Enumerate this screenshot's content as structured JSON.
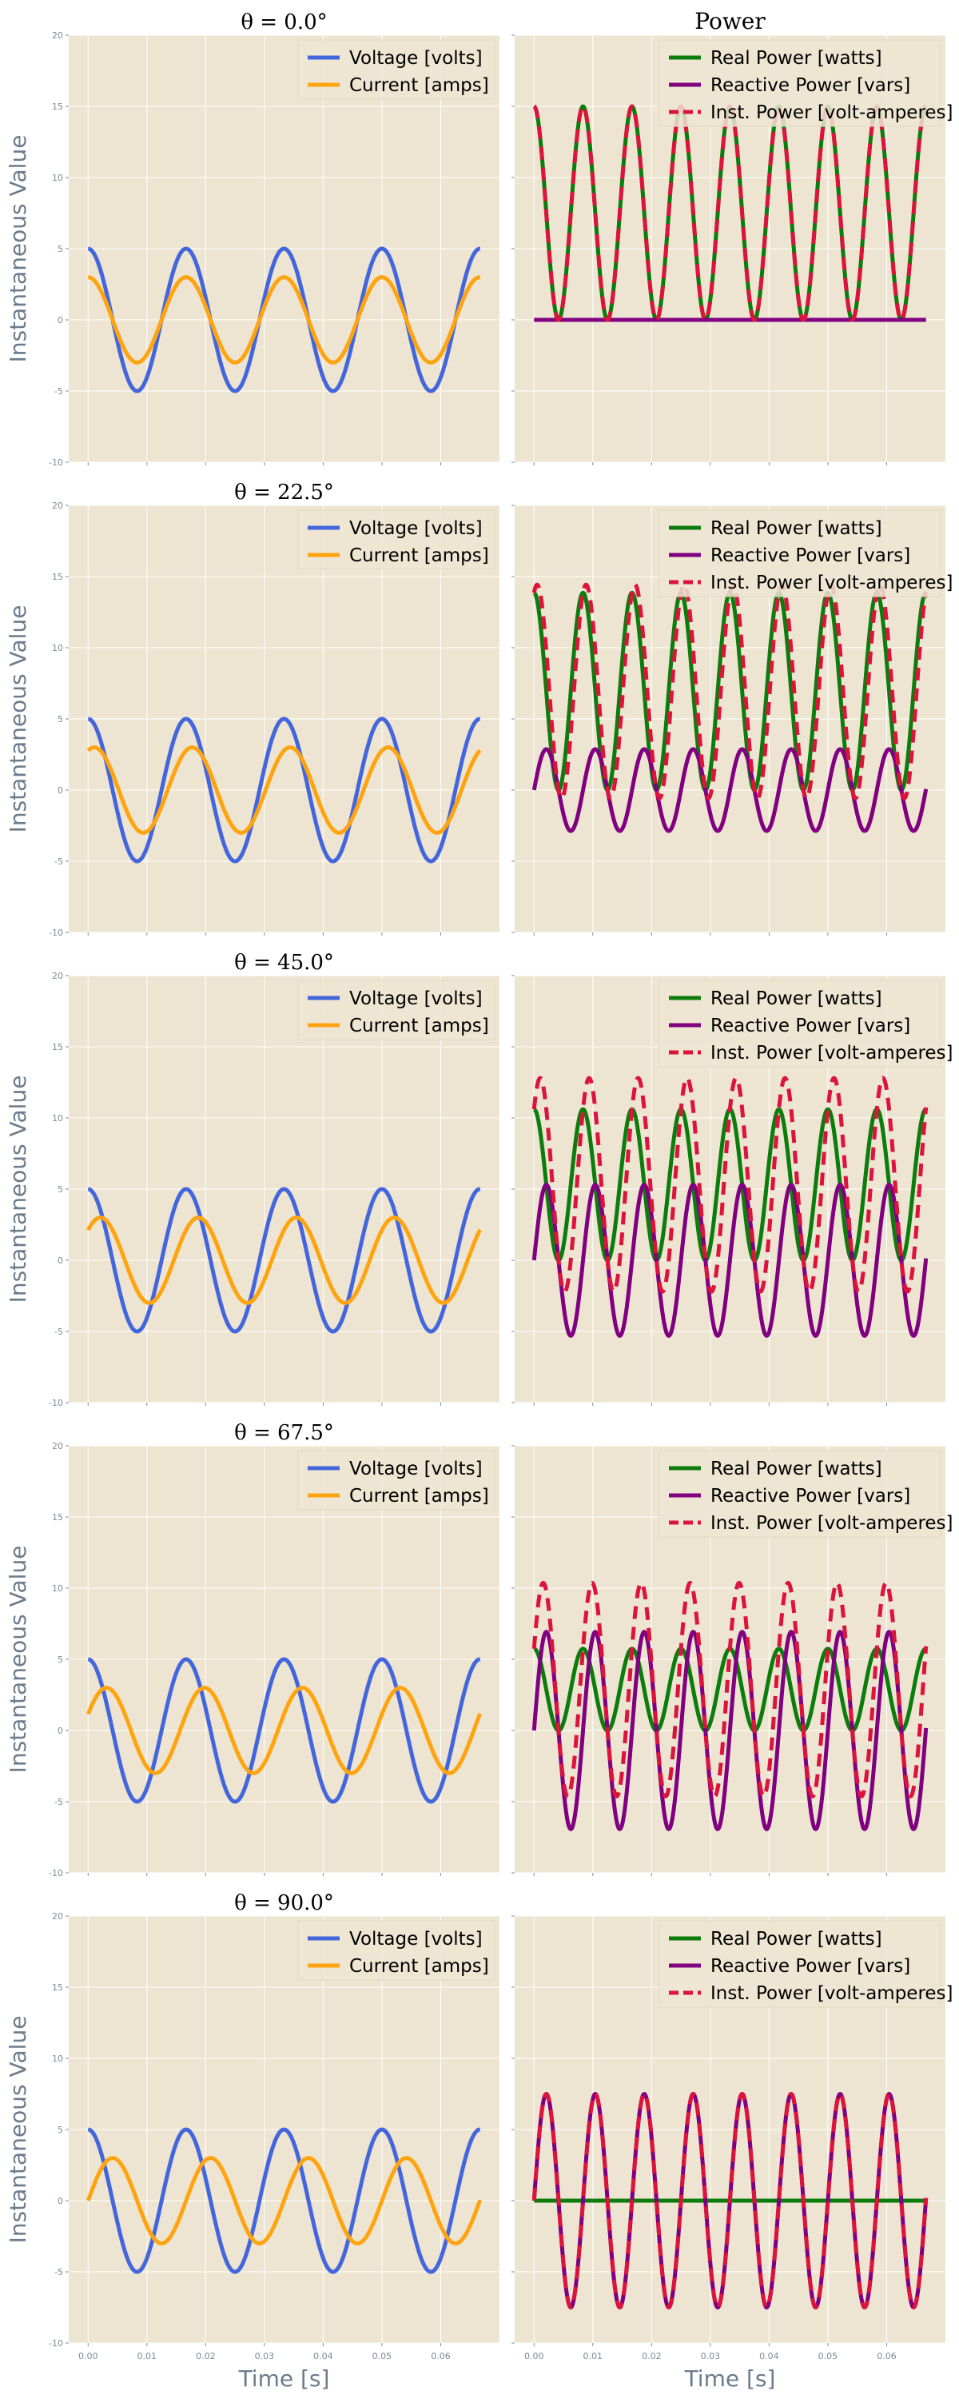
{
  "figure": {
    "style": {
      "axes_bg": "#ede5d2",
      "grid": "#ffffff",
      "tick_color": "#7a8a96",
      "label_color": "#6b7c8c"
    },
    "colors": {
      "voltage": "#4466dd",
      "current": "#ffa411",
      "real": "#0c7c0c",
      "reactive": "#800080",
      "inst": "#dc143c"
    },
    "ylabel": "Instantaneous Value",
    "xlabel": "Time [s]",
    "right_title": "Power",
    "left_titles": [
      "θ = 0.0°",
      "θ = 22.5°",
      "θ = 45.0°",
      "θ = 67.5°",
      "θ = 90.0°"
    ],
    "legend_left": [
      "Voltage [volts]",
      "Current [amps]"
    ],
    "legend_right": [
      "Real Power [watts]",
      "Reactive Power [vars]",
      "Inst. Power [volt-amperes]"
    ],
    "yticks": [
      "-10",
      "-5",
      "0",
      "5",
      "10",
      "15",
      "20"
    ],
    "xticks": [
      "0.00",
      "0.01",
      "0.02",
      "0.03",
      "0.04",
      "0.05",
      "0.06"
    ]
  },
  "chart_data": [
    {
      "type": "line",
      "title": "θ = 0.0°",
      "xlabel": "",
      "ylabel": "Instantaneous Value",
      "xlim": [
        -0.0033,
        0.07
      ],
      "ylim": [
        -10,
        20
      ],
      "grid": true,
      "legend": "top-right",
      "series": [
        {
          "name": "Voltage [volts]",
          "x": [
            0.0,
            0.004,
            0.008,
            0.0125,
            0.0167,
            0.0208,
            0.025,
            0.0333,
            0.0417,
            0.05,
            0.0583,
            0.0667
          ],
          "y": [
            5.0,
            0.0,
            -5.0,
            0.0,
            5.0,
            0.0,
            -5.0,
            5.0,
            -5.0,
            5.0,
            -5.0,
            5.0
          ]
        },
        {
          "name": "Current [amps]",
          "x": [
            0.0,
            0.004,
            0.008,
            0.0125,
            0.0167,
            0.0208,
            0.025,
            0.0333,
            0.0417,
            0.05,
            0.0583,
            0.0667
          ],
          "y": [
            3.0,
            0.0,
            -3.0,
            0.0,
            3.0,
            0.0,
            -3.0,
            3.0,
            -3.0,
            3.0,
            -3.0,
            3.0
          ]
        }
      ]
    },
    {
      "type": "line",
      "title": "Power",
      "xlabel": "",
      "ylabel": "",
      "xlim": [
        -0.0033,
        0.07
      ],
      "ylim": [
        -10,
        20
      ],
      "grid": true,
      "legend": "top-right",
      "series": [
        {
          "name": "Real Power [watts]",
          "x": [
            0.0,
            0.0042,
            0.0083,
            0.0125,
            0.0167,
            0.0208,
            0.025,
            0.0333,
            0.0417,
            0.05,
            0.0583,
            0.0667
          ],
          "y": [
            15.0,
            0.0,
            15.0,
            0.0,
            15.0,
            0.0,
            15.0,
            15.0,
            15.0,
            15.0,
            15.0,
            15.0
          ]
        },
        {
          "name": "Reactive Power [vars]",
          "x": [
            0.0,
            0.0667
          ],
          "y": [
            0.0,
            0.0
          ]
        },
        {
          "name": "Inst. Power [volt-amperes]",
          "x": [
            0.0,
            0.0042,
            0.0083,
            0.0125,
            0.0167,
            0.0208,
            0.025,
            0.0333,
            0.0417,
            0.05,
            0.0583,
            0.0667
          ],
          "y": [
            15.0,
            0.0,
            15.0,
            0.0,
            15.0,
            0.0,
            15.0,
            15.0,
            15.0,
            15.0,
            15.0,
            15.0
          ]
        }
      ]
    },
    {
      "type": "line",
      "title": "θ = 22.5°",
      "xlabel": "",
      "ylabel": "Instantaneous Value",
      "xlim": [
        -0.0033,
        0.07
      ],
      "ylim": [
        -10,
        20
      ],
      "grid": true,
      "legend": "top-right",
      "series": [
        {
          "name": "Voltage [volts]",
          "x": [
            0.0,
            0.004,
            0.008,
            0.0125,
            0.0167,
            0.025,
            0.0333,
            0.0417,
            0.05,
            0.0583,
            0.0667
          ],
          "y": [
            5.0,
            0.0,
            -5.0,
            0.0,
            5.0,
            -5.0,
            5.0,
            -5.0,
            5.0,
            -5.0,
            5.0
          ]
        },
        {
          "name": "Current [amps]",
          "x": [
            0.0,
            0.0031,
            0.0073,
            0.0115,
            0.0156,
            0.024,
            0.0323,
            0.0406,
            0.049,
            0.0573,
            0.0667
          ],
          "y": [
            2.8,
            0.0,
            -3.0,
            0.0,
            3.0,
            -3.0,
            3.0,
            -3.0,
            3.0,
            -3.0,
            2.8
          ]
        }
      ]
    },
    {
      "type": "line",
      "title": "",
      "xlabel": "",
      "ylabel": "",
      "xlim": [
        -0.0033,
        0.07
      ],
      "ylim": [
        -10,
        20
      ],
      "grid": true,
      "legend": "top-right",
      "series": [
        {
          "name": "Real Power [watts]",
          "x": [
            0.0,
            0.0042,
            0.0083,
            0.0125,
            0.0667
          ],
          "y": [
            13.9,
            0.0,
            13.9,
            0.0,
            13.9
          ]
        },
        {
          "name": "Reactive Power [vars]",
          "x": [
            0.0,
            0.0021,
            0.0063,
            0.0104,
            0.0667
          ],
          "y": [
            -1.15,
            -2.9,
            2.9,
            -2.9,
            -1.15
          ]
        },
        {
          "name": "Inst. Power [volt-amperes]",
          "x": [
            0.0,
            0.0031,
            0.0073,
            0.0115,
            0.0667
          ],
          "y": [
            12.7,
            -0.4,
            14.4,
            -0.4,
            12.7
          ]
        }
      ]
    },
    {
      "type": "line",
      "title": "θ = 45.0°",
      "xlabel": "",
      "ylabel": "Instantaneous Value",
      "xlim": [
        -0.0033,
        0.07
      ],
      "ylim": [
        -10,
        20
      ],
      "grid": true,
      "legend": "top-right",
      "series": [
        {
          "name": "Voltage [volts]",
          "x": [
            0.0,
            0.004,
            0.008,
            0.0125,
            0.0167,
            0.025,
            0.0333,
            0.0417,
            0.05,
            0.0583,
            0.0667
          ],
          "y": [
            5.0,
            0.0,
            -5.0,
            0.0,
            5.0,
            -5.0,
            5.0,
            -5.0,
            5.0,
            -5.0,
            5.0
          ]
        },
        {
          "name": "Current [amps]",
          "x": [
            0.0,
            0.0021,
            0.0063,
            0.0104,
            0.0146,
            0.0229,
            0.0313,
            0.0396,
            0.0479,
            0.0563,
            0.0667
          ],
          "y": [
            2.1,
            0.0,
            -3.0,
            0.0,
            3.0,
            -3.0,
            3.0,
            -3.0,
            3.0,
            -3.0,
            2.1
          ]
        }
      ]
    },
    {
      "type": "line",
      "title": "",
      "xlabel": "",
      "ylabel": "",
      "xlim": [
        -0.0033,
        0.07
      ],
      "ylim": [
        -10,
        20
      ],
      "grid": true,
      "legend": "top-right",
      "series": [
        {
          "name": "Real Power [watts]",
          "x": [
            0.0,
            0.0042,
            0.0083,
            0.0667
          ],
          "y": [
            10.6,
            0.0,
            10.6,
            10.6
          ]
        },
        {
          "name": "Reactive Power [vars]",
          "x": [
            0.0,
            0.0021,
            0.0063,
            0.0667
          ],
          "y": [
            -2.1,
            -5.3,
            5.3,
            -2.1
          ]
        },
        {
          "name": "Inst. Power [volt-amperes]",
          "x": [
            0.0,
            0.0031,
            0.0073,
            0.0667
          ],
          "y": [
            8.5,
            -2.2,
            12.8,
            8.5
          ]
        }
      ]
    },
    {
      "type": "line",
      "title": "θ = 67.5°",
      "xlabel": "",
      "ylabel": "Instantaneous Value",
      "xlim": [
        -0.0033,
        0.07
      ],
      "ylim": [
        -10,
        20
      ],
      "grid": true,
      "legend": "top-right",
      "series": [
        {
          "name": "Voltage [volts]",
          "x": [
            0.0,
            0.004,
            0.008,
            0.0125,
            0.0167,
            0.025,
            0.0333,
            0.0417,
            0.05,
            0.0583,
            0.0667
          ],
          "y": [
            5.0,
            0.0,
            -5.0,
            0.0,
            5.0,
            -5.0,
            5.0,
            -5.0,
            5.0,
            -5.0,
            5.0
          ]
        },
        {
          "name": "Current [amps]",
          "x": [
            0.0,
            0.001,
            0.0052,
            0.0094,
            0.0135,
            0.0219,
            0.0302,
            0.0385,
            0.0469,
            0.0552,
            0.0667
          ],
          "y": [
            1.15,
            0.0,
            -3.0,
            0.0,
            3.0,
            -3.0,
            3.0,
            -3.0,
            3.0,
            -3.0,
            1.15
          ]
        }
      ]
    },
    {
      "type": "line",
      "title": "",
      "xlabel": "",
      "ylabel": "",
      "xlim": [
        -0.0033,
        0.07
      ],
      "ylim": [
        -10,
        20
      ],
      "grid": true,
      "legend": "top-right",
      "series": [
        {
          "name": "Real Power [watts]",
          "x": [
            0.0,
            0.0042,
            0.0083,
            0.0667
          ],
          "y": [
            5.7,
            0.0,
            5.7,
            5.7
          ]
        },
        {
          "name": "Reactive Power [vars]",
          "x": [
            0.0,
            0.0021,
            0.0063,
            0.0667
          ],
          "y": [
            -2.9,
            -6.9,
            6.9,
            -2.9
          ]
        },
        {
          "name": "Inst. Power [volt-amperes]",
          "x": [
            0.0,
            0.0031,
            0.0073,
            0.0667
          ],
          "y": [
            2.9,
            -4.5,
            10.4,
            2.9
          ]
        }
      ]
    },
    {
      "type": "line",
      "title": "θ = 90.0°",
      "xlabel": "Time [s]",
      "ylabel": "Instantaneous Value",
      "xlim": [
        -0.0033,
        0.07
      ],
      "ylim": [
        -10,
        20
      ],
      "grid": true,
      "legend": "top-right",
      "series": [
        {
          "name": "Voltage [volts]",
          "x": [
            0.0,
            0.004,
            0.008,
            0.0125,
            0.0167,
            0.025,
            0.0333,
            0.0417,
            0.05,
            0.0583,
            0.0667
          ],
          "y": [
            5.0,
            0.0,
            -5.0,
            0.0,
            5.0,
            -5.0,
            5.0,
            -5.0,
            5.0,
            -5.0,
            5.0
          ]
        },
        {
          "name": "Current [amps]",
          "x": [
            0.0,
            0.0042,
            0.0083,
            0.0125,
            0.0208,
            0.0292,
            0.0375,
            0.0458,
            0.0542,
            0.0625,
            0.0667
          ],
          "y": [
            0.0,
            -3.0,
            0.0,
            3.0,
            -3.0,
            3.0,
            -3.0,
            3.0,
            -3.0,
            3.0,
            0.0
          ]
        }
      ]
    },
    {
      "type": "line",
      "title": "",
      "xlabel": "Time [s]",
      "ylabel": "",
      "xlim": [
        -0.0033,
        0.07
      ],
      "ylim": [
        -10,
        20
      ],
      "grid": true,
      "legend": "top-right",
      "series": [
        {
          "name": "Real Power [watts]",
          "x": [
            0.0,
            0.0667
          ],
          "y": [
            0.0,
            0.0
          ]
        },
        {
          "name": "Reactive Power [vars]",
          "x": [
            0.0,
            0.0021,
            0.0063,
            0.0104,
            0.0667
          ],
          "y": [
            0.0,
            -7.5,
            7.5,
            -7.5,
            0.0
          ]
        },
        {
          "name": "Inst. Power [volt-amperes]",
          "x": [
            0.0,
            0.0021,
            0.0063,
            0.0104,
            0.0667
          ],
          "y": [
            0.0,
            -7.5,
            7.5,
            -7.5,
            0.0
          ]
        }
      ]
    }
  ]
}
